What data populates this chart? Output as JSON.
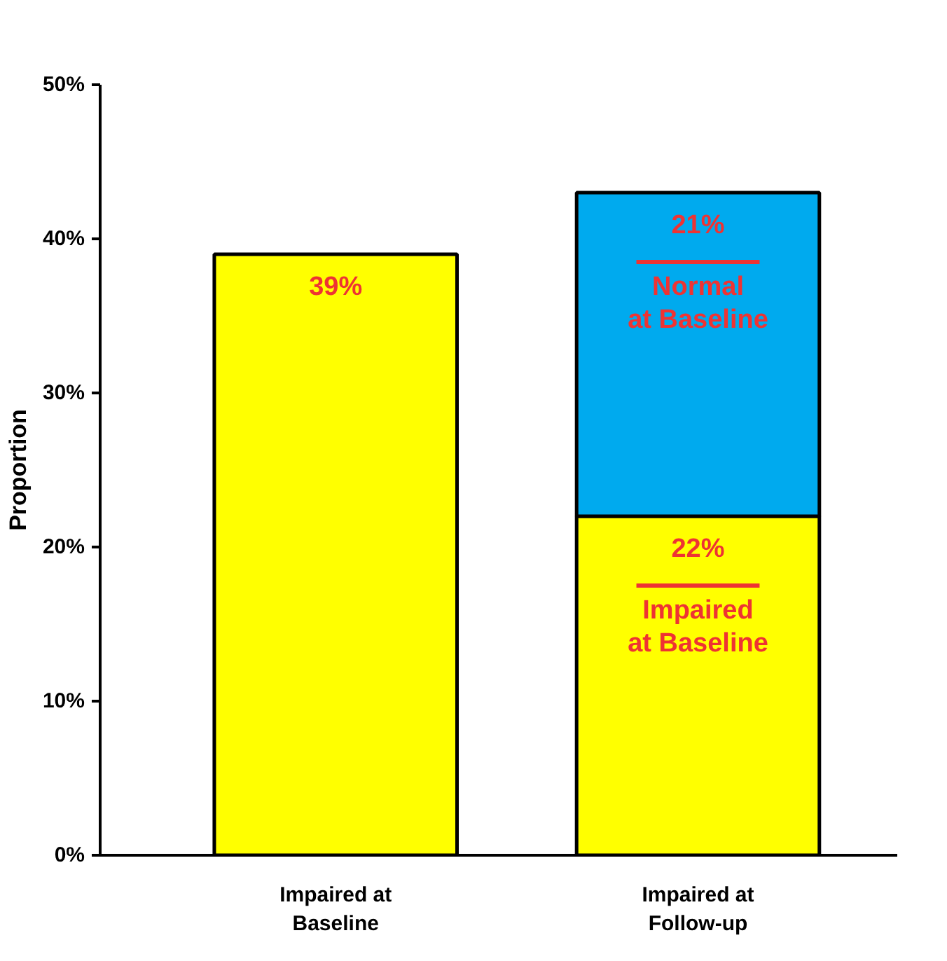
{
  "chart_data": {
    "type": "bar",
    "stacked": true,
    "categories": [
      "Impaired at\nBaseline",
      "Impaired at\nFollow-up"
    ],
    "ylabel": "Proportion",
    "ylim": [
      0,
      50
    ],
    "yticks": [
      {
        "value": 0,
        "label": "0%"
      },
      {
        "value": 10,
        "label": "10%"
      },
      {
        "value": 20,
        "label": "20%"
      },
      {
        "value": 30,
        "label": "30%"
      },
      {
        "value": 40,
        "label": "40%"
      },
      {
        "value": 50,
        "label": "50%"
      }
    ],
    "series": [
      {
        "name": "Impaired at Baseline",
        "color": "#ffff00",
        "values": [
          39,
          22
        ],
        "value_labels": [
          "39%",
          "22%"
        ]
      },
      {
        "name": "Normal at Baseline",
        "color": "#00aaee",
        "values": [
          null,
          21
        ],
        "value_labels": [
          null,
          "21%"
        ]
      }
    ],
    "grid": false
  }
}
